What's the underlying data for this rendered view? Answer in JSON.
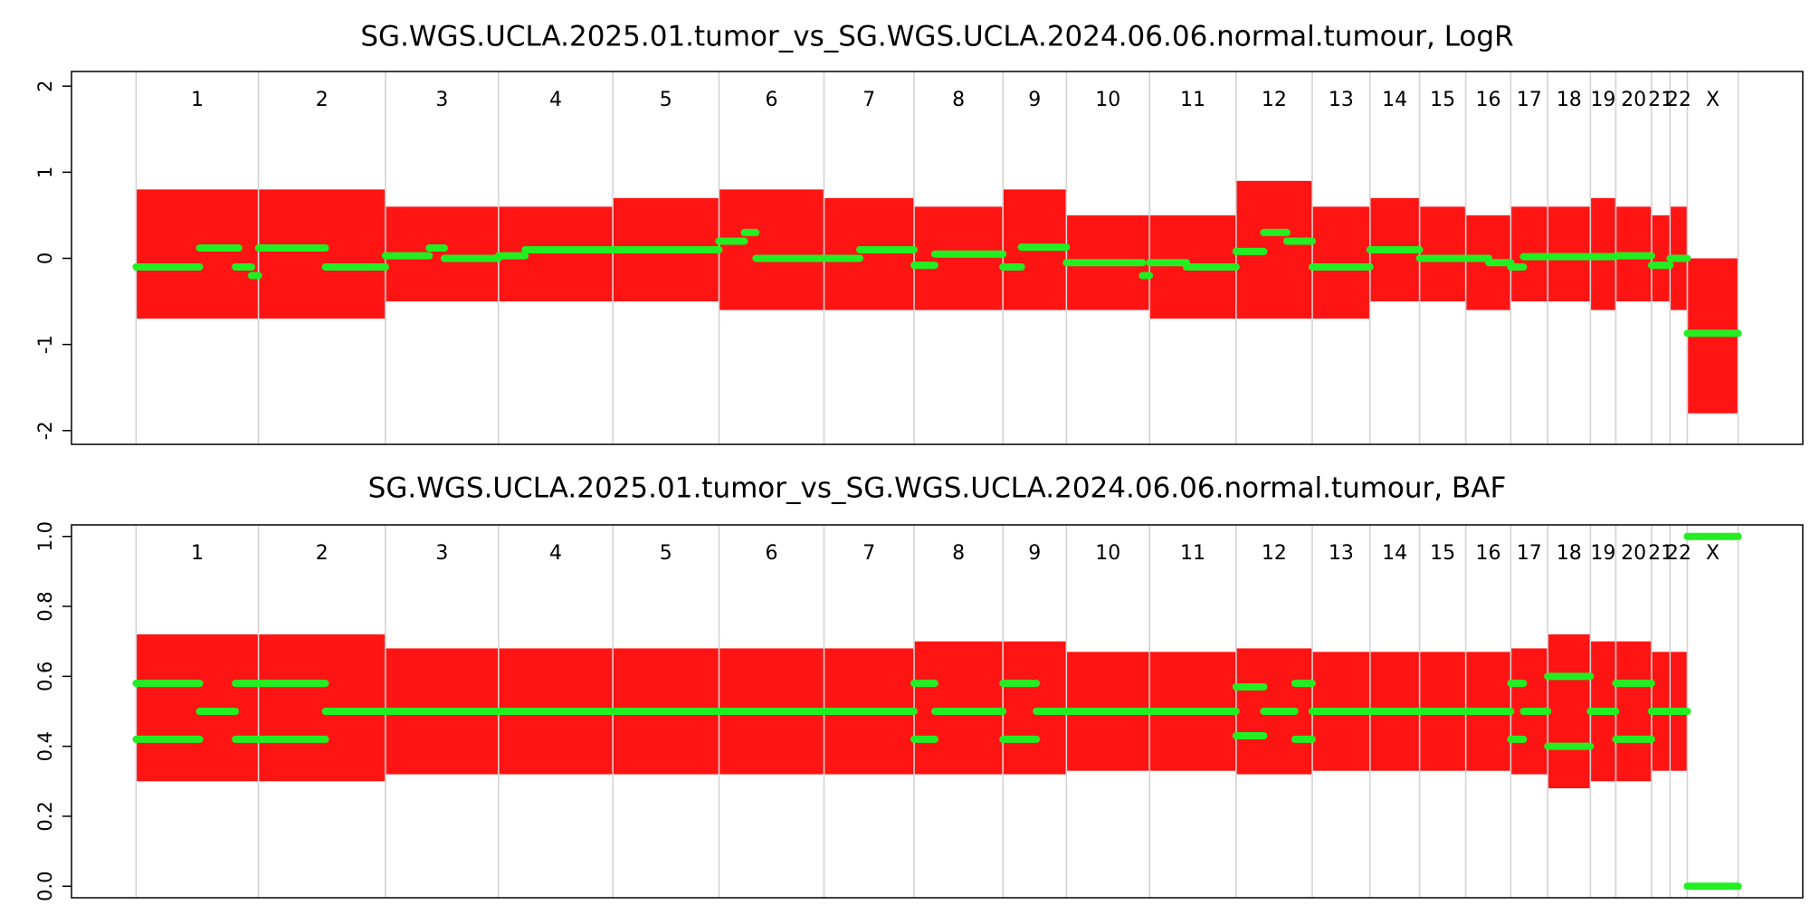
{
  "chart_data": [
    {
      "type": "scatter",
      "title": "SG.WGS.UCLA.2025.01.tumor_vs_SG.WGS.UCLA.2024.06.06.normal.tumour, LogR",
      "categories": [
        "1",
        "2",
        "3",
        "4",
        "5",
        "6",
        "7",
        "8",
        "9",
        "10",
        "11",
        "12",
        "13",
        "14",
        "15",
        "16",
        "17",
        "18",
        "19",
        "20",
        "21",
        "22",
        "X"
      ],
      "chromosome_bounds": [
        0,
        106,
        216,
        314,
        413,
        505,
        596,
        674,
        751,
        806,
        878,
        953,
        1019,
        1069,
        1112,
        1152,
        1191,
        1223,
        1260,
        1282,
        1313,
        1329,
        1344,
        1388
      ],
      "xlim": [
        -56,
        1444
      ],
      "ylim": [
        -2.16,
        2.17
      ],
      "yticks": [
        -2,
        -1,
        0,
        1,
        2
      ],
      "point_color": "#ff0000",
      "segment_color": "#22ee22",
      "bound_color": "#d3d3d3",
      "clouds": [
        [
          -0.7,
          0.8
        ],
        [
          -0.7,
          0.8
        ],
        [
          -0.5,
          0.6
        ],
        [
          -0.5,
          0.6
        ],
        [
          -0.5,
          0.7
        ],
        [
          -0.6,
          0.8
        ],
        [
          -0.6,
          0.7
        ],
        [
          -0.6,
          0.6
        ],
        [
          -0.6,
          0.8
        ],
        [
          -0.6,
          0.5
        ],
        [
          -0.7,
          0.5
        ],
        [
          -0.7,
          0.9
        ],
        [
          -0.7,
          0.6
        ],
        [
          -0.5,
          0.7
        ],
        [
          -0.5,
          0.6
        ],
        [
          -0.6,
          0.5
        ],
        [
          -0.5,
          0.6
        ],
        [
          -0.5,
          0.6
        ],
        [
          -0.6,
          0.7
        ],
        [
          -0.5,
          0.6
        ],
        [
          -0.5,
          0.5
        ],
        [
          -0.6,
          0.6
        ],
        [
          -1.8,
          0.0
        ]
      ],
      "segments": [
        {
          "x": [
            0,
            55
          ],
          "value": -0.1
        },
        {
          "x": [
            55,
            89
          ],
          "value": 0.12
        },
        {
          "x": [
            86,
            100
          ],
          "value": -0.1
        },
        {
          "x": [
            100,
            106
          ],
          "value": -0.2
        },
        {
          "x": [
            106,
            164
          ],
          "value": 0.12
        },
        {
          "x": [
            164,
            216
          ],
          "value": -0.1
        },
        {
          "x": [
            216,
            254
          ],
          "value": 0.03
        },
        {
          "x": [
            254,
            267
          ],
          "value": 0.12
        },
        {
          "x": [
            267,
            314
          ],
          "value": 0
        },
        {
          "x": [
            314,
            337
          ],
          "value": 0.03
        },
        {
          "x": [
            337,
            505
          ],
          "value": 0.1
        },
        {
          "x": [
            505,
            527
          ],
          "value": 0.2
        },
        {
          "x": [
            527,
            537
          ],
          "value": 0.3
        },
        {
          "x": [
            537,
            627
          ],
          "value": 0
        },
        {
          "x": [
            627,
            674
          ],
          "value": 0.1
        },
        {
          "x": [
            674,
            692
          ],
          "value": -0.08
        },
        {
          "x": [
            692,
            751
          ],
          "value": 0.05
        },
        {
          "x": [
            751,
            767
          ],
          "value": -0.1
        },
        {
          "x": [
            767,
            806
          ],
          "value": 0.13
        },
        {
          "x": [
            806,
            872
          ],
          "value": -0.05
        },
        {
          "x": [
            872,
            878
          ],
          "value": -0.2
        },
        {
          "x": [
            878,
            910
          ],
          "value": -0.05
        },
        {
          "x": [
            910,
            953
          ],
          "value": -0.1
        },
        {
          "x": [
            953,
            977
          ],
          "value": 0.08
        },
        {
          "x": [
            977,
            997
          ],
          "value": 0.3
        },
        {
          "x": [
            997,
            1019
          ],
          "value": 0.2
        },
        {
          "x": [
            1019,
            1069
          ],
          "value": -0.1
        },
        {
          "x": [
            1069,
            1112
          ],
          "value": 0.1
        },
        {
          "x": [
            1112,
            1172
          ],
          "value": 0
        },
        {
          "x": [
            1172,
            1191
          ],
          "value": -0.05
        },
        {
          "x": [
            1191,
            1202
          ],
          "value": -0.1
        },
        {
          "x": [
            1202,
            1282
          ],
          "value": 0.02
        },
        {
          "x": [
            1282,
            1313
          ],
          "value": 0.03
        },
        {
          "x": [
            1313,
            1329
          ],
          "value": -0.08
        },
        {
          "x": [
            1329,
            1344
          ],
          "value": 0
        },
        {
          "x": [
            1344,
            1388
          ],
          "value": -0.87
        }
      ]
    },
    {
      "type": "scatter",
      "title": "SG.WGS.UCLA.2025.01.tumor_vs_SG.WGS.UCLA.2024.06.06.normal.tumour, BAF",
      "categories": [
        "1",
        "2",
        "3",
        "4",
        "5",
        "6",
        "7",
        "8",
        "9",
        "10",
        "11",
        "12",
        "13",
        "14",
        "15",
        "16",
        "17",
        "18",
        "19",
        "20",
        "21",
        "22",
        "X"
      ],
      "chromosome_bounds": [
        0,
        106,
        216,
        314,
        413,
        505,
        596,
        674,
        751,
        806,
        878,
        953,
        1019,
        1069,
        1112,
        1152,
        1191,
        1223,
        1260,
        1282,
        1313,
        1329,
        1344,
        1388
      ],
      "xlim": [
        -56,
        1444
      ],
      "ylim": [
        -0.033,
        1.033
      ],
      "yticks": [
        {
          "value": 0,
          "label": "0.0"
        },
        0.2,
        0.4,
        0.6,
        {
          "value": 1,
          "label": "1.0"
        },
        0.8
      ],
      "point_color": "#ff0000",
      "segment_color": "#22ee22",
      "bound_color": "#d3d3d3",
      "clouds": [
        [
          0.3,
          0.72
        ],
        [
          0.3,
          0.72
        ],
        [
          0.32,
          0.68
        ],
        [
          0.32,
          0.68
        ],
        [
          0.32,
          0.68
        ],
        [
          0.32,
          0.68
        ],
        [
          0.32,
          0.68
        ],
        [
          0.32,
          0.7
        ],
        [
          0.32,
          0.7
        ],
        [
          0.33,
          0.67
        ],
        [
          0.33,
          0.67
        ],
        [
          0.32,
          0.68
        ],
        [
          0.33,
          0.67
        ],
        [
          0.33,
          0.67
        ],
        [
          0.33,
          0.67
        ],
        [
          0.33,
          0.67
        ],
        [
          0.32,
          0.68
        ],
        [
          0.28,
          0.72
        ],
        [
          0.3,
          0.7
        ],
        [
          0.3,
          0.7
        ],
        [
          0.33,
          0.67
        ],
        [
          0.33,
          0.67
        ],
        null
      ],
      "segments": [
        {
          "x": [
            0,
            55
          ],
          "value": 0.58
        },
        {
          "x": [
            0,
            55
          ],
          "value": 0.42
        },
        {
          "x": [
            55,
            86
          ],
          "value": 0.5
        },
        {
          "x": [
            86,
            106
          ],
          "value": 0.58
        },
        {
          "x": [
            86,
            106
          ],
          "value": 0.42
        },
        {
          "x": [
            106,
            164
          ],
          "value": 0.58
        },
        {
          "x": [
            106,
            164
          ],
          "value": 0.42
        },
        {
          "x": [
            164,
            674
          ],
          "value": 0.5
        },
        {
          "x": [
            674,
            692
          ],
          "value": 0.58
        },
        {
          "x": [
            674,
            692
          ],
          "value": 0.42
        },
        {
          "x": [
            692,
            751
          ],
          "value": 0.5
        },
        {
          "x": [
            751,
            780
          ],
          "value": 0.58
        },
        {
          "x": [
            751,
            780
          ],
          "value": 0.42
        },
        {
          "x": [
            780,
            953
          ],
          "value": 0.5
        },
        {
          "x": [
            953,
            977
          ],
          "value": 0.57
        },
        {
          "x": [
            953,
            977
          ],
          "value": 0.43
        },
        {
          "x": [
            977,
            1004
          ],
          "value": 0.5
        },
        {
          "x": [
            1004,
            1019
          ],
          "value": 0.58
        },
        {
          "x": [
            1004,
            1019
          ],
          "value": 0.42
        },
        {
          "x": [
            1019,
            1191
          ],
          "value": 0.5
        },
        {
          "x": [
            1191,
            1202
          ],
          "value": 0.58
        },
        {
          "x": [
            1191,
            1202
          ],
          "value": 0.42
        },
        {
          "x": [
            1202,
            1223
          ],
          "value": 0.5
        },
        {
          "x": [
            1223,
            1260
          ],
          "value": 0.6
        },
        {
          "x": [
            1223,
            1260
          ],
          "value": 0.4
        },
        {
          "x": [
            1260,
            1282
          ],
          "value": 0.5
        },
        {
          "x": [
            1282,
            1313
          ],
          "value": 0.58
        },
        {
          "x": [
            1282,
            1313
          ],
          "value": 0.42
        },
        {
          "x": [
            1313,
            1344
          ],
          "value": 0.5
        },
        {
          "x": [
            1344,
            1388
          ],
          "value": 1.0
        },
        {
          "x": [
            1344,
            1388
          ],
          "value": 0.0
        }
      ]
    }
  ]
}
